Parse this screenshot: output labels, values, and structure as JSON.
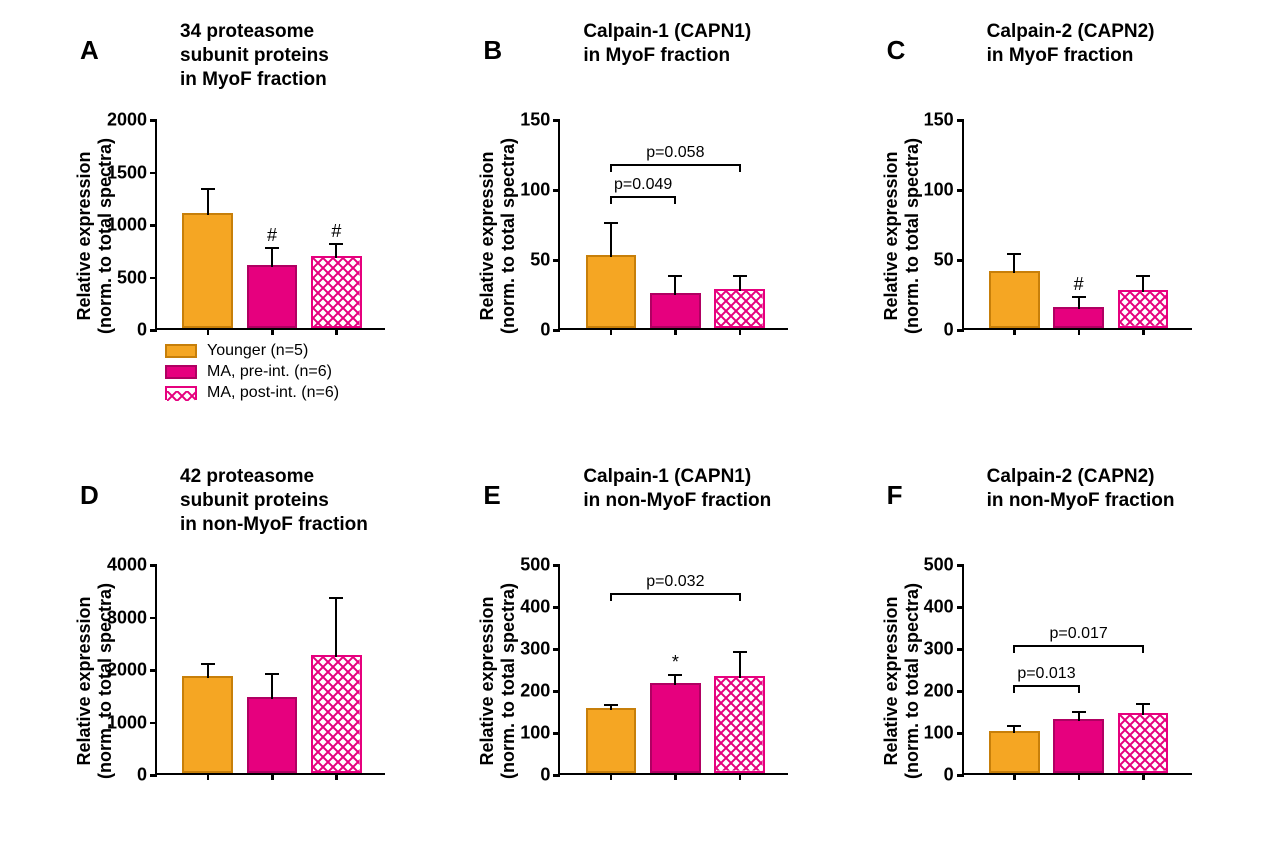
{
  "colors": {
    "younger_fill": "#f5a623",
    "younger_stroke": "#c77f0a",
    "pre_fill": "#e6007e",
    "pre_stroke": "#b00062",
    "post_fill": "#ffffff",
    "post_stroke": "#e6007e",
    "axis": "#000000",
    "text": "#000000",
    "bg": "#ffffff"
  },
  "common": {
    "y_axis_label": "Relative expression\n(norm. to total spectra)",
    "title_fontsize": 19,
    "label_fontsize": 18,
    "letter_fontsize": 26,
    "bar_width_rel": 0.22,
    "bar_gap_rel": 0.06
  },
  "legend": {
    "items": [
      {
        "label": "Younger (n=5)",
        "fill": "younger"
      },
      {
        "label": "MA, pre-int. (n=6)",
        "fill": "pre"
      },
      {
        "label": "MA, post-int. (n=6)",
        "fill": "post"
      }
    ]
  },
  "panels": {
    "A": {
      "letter": "A",
      "title": "34 proteasome\nsubunit proteins\nin MyoF fraction",
      "ylim": [
        0,
        2000
      ],
      "ytick_step": 500,
      "bars": [
        {
          "group": "younger",
          "value": 1100,
          "err": 250
        },
        {
          "group": "pre",
          "value": 600,
          "err": 190,
          "annot": "#"
        },
        {
          "group": "post",
          "value": 690,
          "err": 140,
          "annot": "#"
        }
      ]
    },
    "B": {
      "letter": "B",
      "title": "Calpain-1 (CAPN1)\nin MyoF fraction",
      "ylim": [
        0,
        150
      ],
      "ytick_step": 50,
      "bars": [
        {
          "group": "younger",
          "value": 52,
          "err": 25
        },
        {
          "group": "pre",
          "value": 25,
          "err": 14
        },
        {
          "group": "post",
          "value": 28,
          "err": 11
        }
      ],
      "brackets": [
        {
          "from": 0,
          "to": 1,
          "label": "p=0.049",
          "level": 0
        },
        {
          "from": 0,
          "to": 2,
          "label": "p=0.058",
          "level": 1
        }
      ]
    },
    "C": {
      "letter": "C",
      "title": "Calpain-2 (CAPN2)\nin MyoF fraction",
      "ylim": [
        0,
        150
      ],
      "ytick_step": 50,
      "bars": [
        {
          "group": "younger",
          "value": 41,
          "err": 14
        },
        {
          "group": "pre",
          "value": 15,
          "err": 9,
          "annot": "#"
        },
        {
          "group": "post",
          "value": 27,
          "err": 12
        }
      ]
    },
    "D": {
      "letter": "D",
      "title": "42 proteasome\nsubunit proteins\nin non-MyoF fraction",
      "ylim": [
        0,
        4000
      ],
      "ytick_step": 1000,
      "bars": [
        {
          "group": "younger",
          "value": 1850,
          "err": 290
        },
        {
          "group": "pre",
          "value": 1450,
          "err": 500
        },
        {
          "group": "post",
          "value": 2250,
          "err": 1150
        }
      ]
    },
    "E": {
      "letter": "E",
      "title": "Calpain-1 (CAPN1)\nin non-MyoF fraction",
      "ylim": [
        0,
        500
      ],
      "ytick_step": 100,
      "bars": [
        {
          "group": "younger",
          "value": 155,
          "err": 15
        },
        {
          "group": "pre",
          "value": 215,
          "err": 25,
          "annot": "*"
        },
        {
          "group": "post",
          "value": 230,
          "err": 65
        }
      ],
      "brackets": [
        {
          "from": 0,
          "to": 2,
          "label": "p=0.032",
          "level": 1
        }
      ]
    },
    "F": {
      "letter": "F",
      "title": "Calpain-2 (CAPN2)\nin non-MyoF fraction",
      "ylim": [
        0,
        500
      ],
      "ytick_step": 100,
      "bars": [
        {
          "group": "younger",
          "value": 100,
          "err": 18
        },
        {
          "group": "pre",
          "value": 128,
          "err": 25
        },
        {
          "group": "post",
          "value": 142,
          "err": 30
        }
      ],
      "brackets": [
        {
          "from": 0,
          "to": 1,
          "label": "p=0.013",
          "level": 0
        },
        {
          "from": 0,
          "to": 2,
          "label": "p=0.017",
          "level": 1
        }
      ]
    }
  }
}
